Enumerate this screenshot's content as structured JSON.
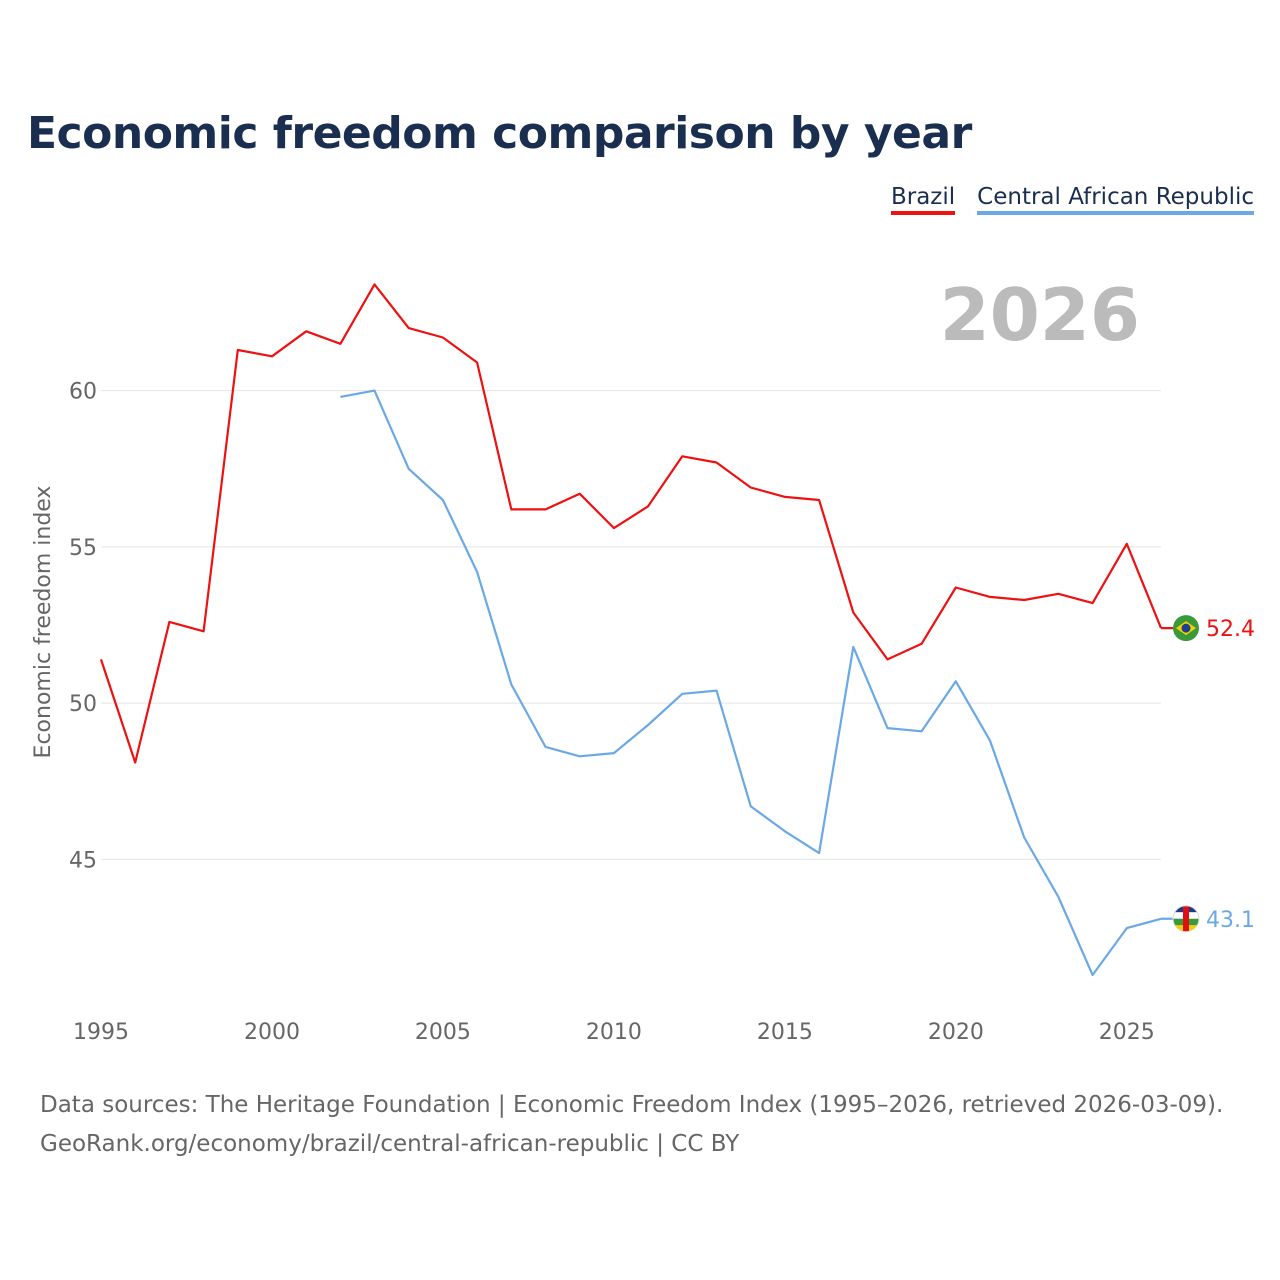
{
  "title": "Economic freedom comparison by year",
  "year_display": "2026",
  "footer": {
    "line1": "Data sources: The Heritage Foundation | Economic Freedom Index (1995–2026, retrieved 2026-03-09).",
    "line2": "GeoRank.org/economy/brazil/central-african-republic | CC BY"
  },
  "chart_data": {
    "type": "line",
    "title": "Economic freedom comparison by year",
    "xlabel": "",
    "ylabel": "Economic freedom index",
    "xlim": [
      1995,
      2026
    ],
    "ylim": [
      40.5,
      64.5
    ],
    "x_ticks": [
      1995,
      2000,
      2005,
      2010,
      2015,
      2020,
      2025
    ],
    "y_ticks": [
      45,
      50,
      55,
      60
    ],
    "grid": true,
    "legend_position": "top-right",
    "series": [
      {
        "name": "Brazil",
        "color": "#ee1111",
        "end_label": "52.4",
        "flag_icon": "brazil-flag-icon",
        "x": [
          1995,
          1996,
          1997,
          1998,
          1999,
          2000,
          2001,
          2002,
          2003,
          2004,
          2005,
          2006,
          2007,
          2008,
          2009,
          2010,
          2011,
          2012,
          2013,
          2014,
          2015,
          2016,
          2017,
          2018,
          2019,
          2020,
          2021,
          2022,
          2023,
          2024,
          2025,
          2026
        ],
        "values": [
          51.4,
          48.1,
          52.6,
          52.3,
          61.3,
          61.1,
          61.9,
          61.5,
          63.4,
          62.0,
          61.7,
          60.9,
          56.2,
          56.2,
          56.7,
          55.6,
          56.3,
          57.9,
          57.7,
          56.9,
          56.6,
          56.5,
          52.9,
          51.4,
          51.9,
          53.7,
          53.4,
          53.3,
          53.5,
          53.2,
          55.1,
          52.4
        ]
      },
      {
        "name": "Central African Republic",
        "color": "#6aa9e6",
        "end_label": "43.1",
        "flag_icon": "central-african-republic-flag-icon",
        "x": [
          2002,
          2003,
          2004,
          2005,
          2006,
          2007,
          2008,
          2009,
          2010,
          2011,
          2012,
          2013,
          2014,
          2015,
          2016,
          2017,
          2018,
          2019,
          2020,
          2021,
          2022,
          2023,
          2024,
          2025,
          2026
        ],
        "values": [
          59.8,
          60.0,
          57.5,
          56.5,
          54.2,
          50.6,
          48.6,
          48.3,
          48.4,
          49.3,
          50.3,
          50.4,
          46.7,
          45.9,
          45.2,
          51.8,
          49.2,
          49.1,
          50.7,
          48.8,
          45.7,
          43.8,
          41.3,
          42.8,
          43.1
        ]
      }
    ]
  }
}
